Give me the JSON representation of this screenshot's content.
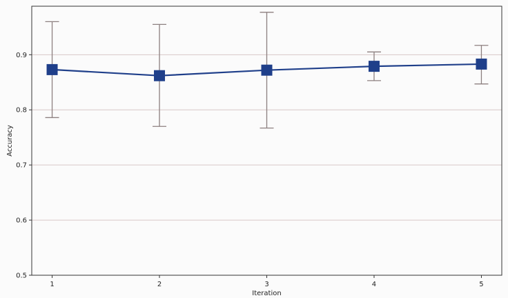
{
  "chart_data": {
    "type": "line",
    "title": "",
    "xlabel": "Iteration",
    "ylabel": "Accuracy",
    "x": [
      1,
      2,
      3,
      4,
      5
    ],
    "xlim": [
      0.81,
      5.19
    ],
    "ylim": [
      0.5,
      0.988
    ],
    "yticks": [
      0.5,
      0.6,
      0.7,
      0.8,
      0.9
    ],
    "ytick_labels": [
      "0.5",
      "0.6",
      "0.7",
      "0.8",
      "0.9"
    ],
    "xticks": [
      1,
      2,
      3,
      4,
      5
    ],
    "xtick_labels": [
      "1",
      "2",
      "3",
      "4",
      "5"
    ],
    "grid": "horizontal",
    "legend": "none",
    "series": [
      {
        "values": [
          0.873,
          0.862,
          0.872,
          0.879,
          0.883
        ],
        "error_low": [
          0.786,
          0.77,
          0.767,
          0.853,
          0.847
        ],
        "error_high": [
          0.96,
          0.955,
          0.977,
          0.905,
          0.917
        ],
        "marker": "square",
        "color": "#1f3f8a",
        "error_color": "#8c7f7f"
      }
    ],
    "colors": {
      "grid": "#d8c8c8",
      "axes": "#333333",
      "background": "#fbfbfb"
    }
  }
}
